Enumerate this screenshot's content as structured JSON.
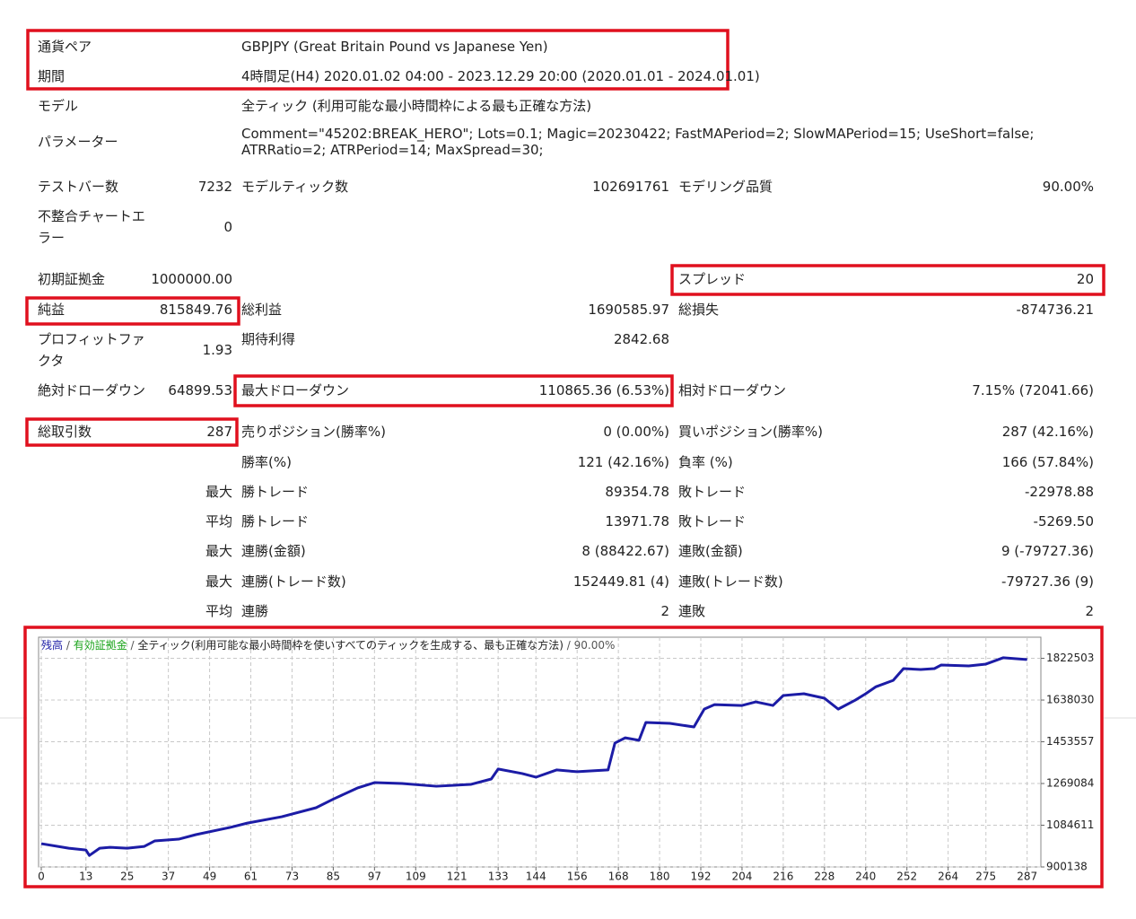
{
  "header": [
    {
      "label": "通貨ペア",
      "value": "GBPJPY (Great Britain Pound vs Japanese Yen)"
    },
    {
      "label": "期間",
      "value": "4時間足(H4) 2020.01.02 04:00 - 2023.12.29 20:00 (2020.01.01 - 2024.01.01)"
    },
    {
      "label": "モデル",
      "value": "全ティック (利用可能な最小時間枠による最も正確な方法)"
    },
    {
      "label": "パラメーター",
      "value": "Comment=\"45202:BREAK_HERO\"; Lots=0.1; Magic=20230422; FastMAPeriod=2; SlowMAPeriod=15; UseShort=false; ATRRatio=2; ATRPeriod=14; MaxSpread=30;"
    }
  ],
  "rows": [
    {
      "left": {
        "label": "テストバー数",
        "value": "7232"
      },
      "middle": {
        "label": "モデルティック数",
        "value": "102691761"
      },
      "right": {
        "label": "モデリング品質",
        "value": "90.00%"
      }
    },
    {
      "left": {
        "label": "不整合チャートエラー",
        "value": "0"
      }
    },
    {
      "left": {
        "label": "初期証拠金",
        "value": "1000000.00"
      },
      "right": {
        "label": "スプレッド",
        "value": "20"
      }
    },
    {
      "left": {
        "label": "純益",
        "value": "815849.76"
      },
      "middle": {
        "label": "総利益",
        "value": "1690585.97"
      },
      "right": {
        "label": "総損失",
        "value": "-874736.21"
      }
    },
    {
      "left": {
        "label": "プロフィットファクタ",
        "value": "1.93"
      },
      "middle": {
        "label": "期待利得",
        "value": "2842.68"
      }
    },
    {
      "left": {
        "label": "絶対ドローダウン",
        "value": "64899.53"
      },
      "middle": {
        "label": "最大ドローダウン",
        "value": "110865.36 (6.53%)"
      },
      "right": {
        "label": "相対ドローダウン",
        "value": "7.15% (72041.66)"
      }
    },
    {
      "left": {
        "label": "総取引数",
        "value": "287"
      },
      "middle": {
        "label": "売りポジション(勝率%)",
        "value": "0 (0.00%)"
      },
      "right": {
        "label": "買いポジション(勝率%)",
        "value": "287 (42.16%)"
      }
    },
    {
      "middle": {
        "label": "勝率(%)",
        "value": "121 (42.16%)"
      },
      "right": {
        "label": "負率 (%)",
        "value": "166 (57.84%)"
      }
    },
    {
      "prefix": "最大",
      "middle": {
        "label": "勝トレード",
        "value": "89354.78"
      },
      "right": {
        "label": "敗トレード",
        "value": "-22978.88"
      }
    },
    {
      "prefix": "平均",
      "middle": {
        "label": "勝トレード",
        "value": "13971.78"
      },
      "right": {
        "label": "敗トレード",
        "value": "-5269.50"
      }
    },
    {
      "prefix": "最大",
      "middle": {
        "label": "連勝(金額)",
        "value": "8 (88422.67)"
      },
      "right": {
        "label": "連敗(金額)",
        "value": "9 (-79727.36)"
      }
    },
    {
      "prefix": "最大",
      "middle": {
        "label": "連勝(トレード数)",
        "value": "152449.81 (4)"
      },
      "right": {
        "label": "連敗(トレード数)",
        "value": "-79727.36 (9)"
      }
    },
    {
      "prefix": "平均",
      "middle": {
        "label": "連勝",
        "value": "2"
      },
      "right": {
        "label": "連敗",
        "value": "2"
      }
    }
  ],
  "chart_data": {
    "type": "line",
    "legend": [
      "残高",
      "有効証拠金",
      "全ティック(利用可能な最小時間枠を使いすべてのティックを生成する、最も正確な方法)",
      "90.00%"
    ],
    "x": [
      0,
      8,
      13,
      14,
      17,
      20,
      25,
      30,
      33,
      40,
      45,
      55,
      60,
      70,
      80,
      85,
      92,
      97,
      105,
      115,
      125,
      131,
      133,
      140,
      144,
      150,
      156,
      165,
      167,
      170,
      174,
      176,
      183,
      190,
      193,
      196,
      204,
      208,
      213,
      216,
      222,
      228,
      232,
      237,
      240,
      243,
      248,
      251,
      256,
      260,
      262,
      270,
      275,
      280,
      287
    ],
    "series": [
      {
        "name": "残高",
        "color": "#1c1ca6",
        "values": [
          1003000,
          983000,
          975000,
          951000,
          983000,
          987000,
          983000,
          991000,
          1015000,
          1023000,
          1043000,
          1075000,
          1094000,
          1122000,
          1162000,
          1200000,
          1249000,
          1273000,
          1269000,
          1257000,
          1265000,
          1289000,
          1333000,
          1313000,
          1297000,
          1329000,
          1321000,
          1329000,
          1448000,
          1471000,
          1460000,
          1539000,
          1535000,
          1519000,
          1598000,
          1618000,
          1614000,
          1630000,
          1614000,
          1658000,
          1666000,
          1646000,
          1598000,
          1638000,
          1666000,
          1697000,
          1725000,
          1777000,
          1773000,
          1777000,
          1793000,
          1789000,
          1797000,
          1825000,
          1817000
        ]
      }
    ],
    "xlim": [
      0,
      291
    ],
    "ylim": [
      900138,
      1904000
    ],
    "xticks": [
      0,
      13,
      25,
      37,
      49,
      61,
      73,
      85,
      97,
      109,
      121,
      133,
      144,
      156,
      168,
      180,
      192,
      204,
      216,
      228,
      240,
      252,
      264,
      275,
      287
    ],
    "yticks": [
      900138,
      1084611,
      1269084,
      1453557,
      1638030,
      1822503
    ],
    "grid": true
  }
}
